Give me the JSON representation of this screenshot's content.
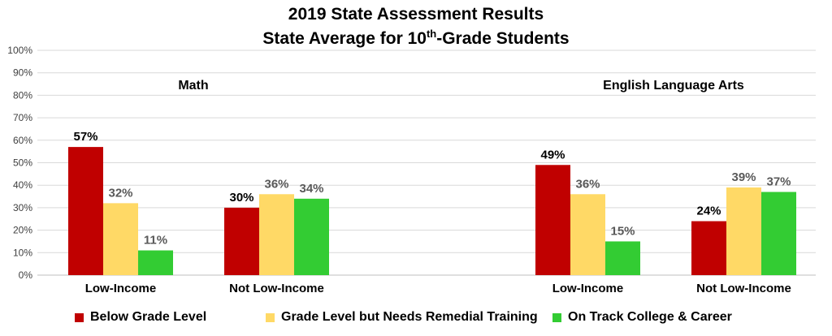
{
  "title_line1": "2019 State Assessment Results",
  "title_line2_prefix": "State Average for 10",
  "title_line2_sup": "th",
  "title_line2_suffix": "-Grade Students",
  "chart_data": {
    "type": "bar",
    "ylim": [
      0,
      100
    ],
    "y_ticks": [
      "0%",
      "10%",
      "20%",
      "30%",
      "40%",
      "50%",
      "60%",
      "70%",
      "80%",
      "90%",
      "100%"
    ],
    "grid": true,
    "legend_position": "bottom",
    "panels": [
      {
        "label": "Math",
        "groups": [
          {
            "category": "Low-Income",
            "values": [
              57,
              32,
              11
            ],
            "labels": [
              "57%",
              "32%",
              "11%"
            ]
          },
          {
            "category": "Not Low-Income",
            "values": [
              30,
              36,
              34
            ],
            "labels": [
              "30%",
              "36%",
              "34%"
            ]
          }
        ]
      },
      {
        "label": "English Language Arts",
        "groups": [
          {
            "category": "Low-Income",
            "values": [
              49,
              36,
              15
            ],
            "labels": [
              "49%",
              "36%",
              "15%"
            ]
          },
          {
            "category": "Not Low-Income",
            "values": [
              24,
              39,
              37
            ],
            "labels": [
              "24%",
              "39%",
              "37%"
            ]
          }
        ]
      }
    ],
    "series": [
      {
        "name": "Below Grade Level",
        "color": "#c00000",
        "label_color": "#000000"
      },
      {
        "name": "Grade Level but Needs Remedial Training",
        "color": "#ffd966",
        "label_color": "#595959"
      },
      {
        "name": "On Track College & Career",
        "color": "#33cc33",
        "label_color": "#595959"
      }
    ]
  }
}
